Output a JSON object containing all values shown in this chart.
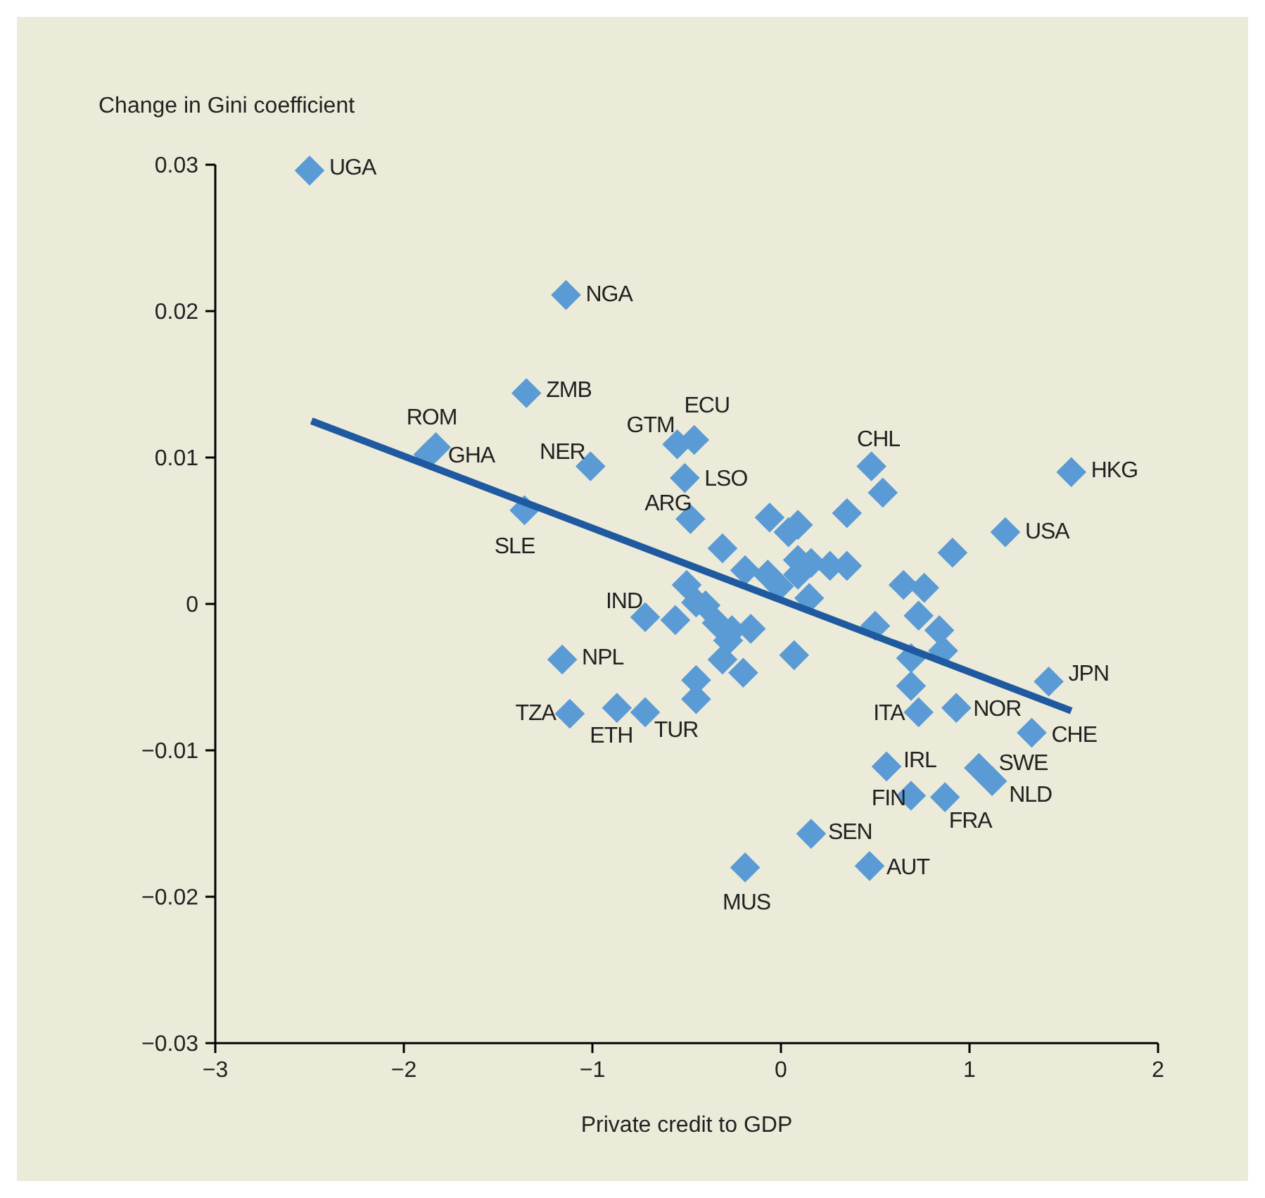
{
  "chart_data": {
    "type": "scatter",
    "xlabel": "Private credit to GDP",
    "ylabel": "Change in Gini coefficient",
    "xlim": [
      -3,
      2
    ],
    "ylim": [
      -0.03,
      0.03
    ],
    "xticks": [
      {
        "value": -3,
        "label": "−3"
      },
      {
        "value": -2,
        "label": "−2"
      },
      {
        "value": -1,
        "label": "−1"
      },
      0,
      1,
      2
    ],
    "yticks": [
      {
        "value": -0.03,
        "label": "−0.03"
      },
      {
        "value": -0.02,
        "label": "−0.02"
      },
      {
        "value": -0.01,
        "label": "−0.01"
      },
      0,
      0.01,
      0.02,
      0.03
    ],
    "grid": false,
    "marker": "diamond",
    "series": [
      {
        "color": "#5b9bd5",
        "x": [
          -2.5,
          -1.14,
          -1.35,
          -1.83,
          -1.87,
          -1.01,
          -0.55,
          -0.46,
          -0.51,
          0.48,
          1.54,
          -0.48,
          -1.36,
          1.19,
          -0.72,
          -1.16,
          -1.12,
          -0.87,
          -0.72,
          1.42,
          1.33,
          0.93,
          0.73,
          0.56,
          1.05,
          1.12,
          0.69,
          0.87,
          0.16,
          0.47,
          -0.19,
          0.54,
          0.35,
          -0.06,
          0.09,
          0.04,
          0.91,
          -0.31,
          -0.19,
          -0.07,
          0.09,
          0.16,
          0.26,
          0.35,
          0.09,
          -0.01,
          0.15,
          -0.5,
          0.65,
          0.76,
          0.73,
          -0.56,
          -0.4,
          -0.34,
          -0.26,
          -0.16,
          -0.28,
          0.84,
          0.5,
          0.86,
          0.69,
          0.07,
          -0.31,
          -0.2,
          -0.45,
          -0.45,
          0.69,
          -0.45
        ],
        "values": [
          0.0296,
          0.0211,
          0.0144,
          0.0107,
          0.0102,
          0.0094,
          0.0109,
          0.0112,
          0.0086,
          0.0094,
          0.009,
          0.0058,
          0.0064,
          0.0049,
          -0.0009,
          -0.0038,
          -0.0075,
          -0.0071,
          -0.0074,
          -0.0053,
          -0.0088,
          -0.0071,
          -0.0074,
          -0.0111,
          -0.0112,
          -0.0121,
          -0.0131,
          -0.0132,
          -0.0157,
          -0.0179,
          -0.018,
          0.0076,
          0.0062,
          0.0059,
          0.0054,
          0.0049,
          0.0035,
          0.0038,
          0.0023,
          0.002,
          0.003,
          0.0028,
          0.0026,
          0.0026,
          0.002,
          0.0012,
          0.0004,
          0.0013,
          0.0013,
          0.0011,
          -0.0008,
          -0.0011,
          -0.0001,
          -0.0013,
          -0.0018,
          -0.0017,
          -0.0025,
          -0.0018,
          -0.0015,
          -0.0032,
          -0.0037,
          -0.0035,
          -0.0038,
          -0.0047,
          -0.0052,
          -0.0065,
          -0.0056,
          0.0001
        ]
      },
      {
        "type": "line",
        "color": "#1f5aa0",
        "marker": "none",
        "x": [
          -2.49,
          1.54
        ],
        "values": [
          0.0125,
          -0.0073
        ]
      }
    ],
    "annotations": [
      {
        "text": "UGA",
        "x": -2.5,
        "y": 0.0296
      },
      {
        "text": "NGA",
        "x": -1.14,
        "y": 0.0211
      },
      {
        "text": "ZMB",
        "x": -1.35,
        "y": 0.0144
      },
      {
        "text": "ROM",
        "x": -1.83,
        "y": 0.0107
      },
      {
        "text": "GHA",
        "x": -1.87,
        "y": 0.0102
      },
      {
        "text": "NER",
        "x": -1.01,
        "y": 0.0094
      },
      {
        "text": "GTM",
        "x": -0.55,
        "y": 0.0109
      },
      {
        "text": "ECU",
        "x": -0.46,
        "y": 0.0112
      },
      {
        "text": "LSO",
        "x": -0.51,
        "y": 0.0086
      },
      {
        "text": "CHL",
        "x": 0.48,
        "y": 0.0094
      },
      {
        "text": "HKG",
        "x": 1.54,
        "y": 0.009
      },
      {
        "text": "ARG",
        "x": -0.48,
        "y": 0.0058
      },
      {
        "text": "SLE",
        "x": -1.36,
        "y": 0.0064
      },
      {
        "text": "USA",
        "x": 1.19,
        "y": 0.0049
      },
      {
        "text": "IND",
        "x": -0.72,
        "y": -0.0009
      },
      {
        "text": "NPL",
        "x": -1.16,
        "y": -0.0038
      },
      {
        "text": "TZA",
        "x": -1.12,
        "y": -0.0075
      },
      {
        "text": "ETH",
        "x": -0.87,
        "y": -0.0071
      },
      {
        "text": "TUR",
        "x": -0.72,
        "y": -0.0074
      },
      {
        "text": "JPN",
        "x": 1.42,
        "y": -0.0053
      },
      {
        "text": "CHE",
        "x": 1.33,
        "y": -0.0088
      },
      {
        "text": "NOR",
        "x": 0.93,
        "y": -0.0071
      },
      {
        "text": "ITA",
        "x": 0.73,
        "y": -0.0074
      },
      {
        "text": "IRL",
        "x": 0.56,
        "y": -0.0111
      },
      {
        "text": "SWE",
        "x": 1.05,
        "y": -0.0112
      },
      {
        "text": "NLD",
        "x": 1.12,
        "y": -0.0121
      },
      {
        "text": "FIN",
        "x": 0.69,
        "y": -0.0131
      },
      {
        "text": "FRA",
        "x": 0.87,
        "y": -0.0132
      },
      {
        "text": "SEN",
        "x": 0.16,
        "y": -0.0157
      },
      {
        "text": "AUT",
        "x": 0.47,
        "y": -0.0179
      },
      {
        "text": "MUS",
        "x": -0.19,
        "y": -0.018
      }
    ]
  }
}
